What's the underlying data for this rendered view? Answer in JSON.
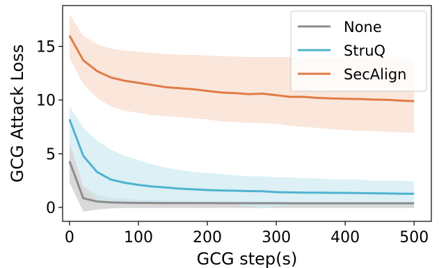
{
  "chart_data": {
    "type": "line",
    "xlabel": "GCG step(s)",
    "ylabel": "GCG Attack Loss",
    "xlim": [
      -10,
      525
    ],
    "ylim": [
      -1.3,
      18.8
    ],
    "xticks": [
      0,
      100,
      200,
      300,
      400,
      500
    ],
    "yticks": [
      0,
      5,
      10,
      15
    ],
    "grid": false,
    "legend_position": "top-right",
    "x": [
      0,
      20,
      40,
      60,
      80,
      100,
      120,
      140,
      160,
      180,
      200,
      220,
      240,
      260,
      280,
      300,
      320,
      340,
      360,
      380,
      400,
      420,
      440,
      460,
      480,
      500
    ],
    "series": [
      {
        "name": "None",
        "color": "#8c8c8c",
        "fill_color": "#c9c9c9",
        "values": [
          4.3,
          0.85,
          0.55,
          0.47,
          0.44,
          0.42,
          0.41,
          0.4,
          0.4,
          0.4,
          0.4,
          0.39,
          0.39,
          0.39,
          0.39,
          0.39,
          0.38,
          0.38,
          0.38,
          0.38,
          0.38,
          0.38,
          0.38,
          0.38,
          0.38,
          0.38
        ],
        "upper": [
          6.0,
          2.0,
          1.2,
          0.9,
          0.8,
          0.7,
          0.65,
          0.62,
          0.6,
          0.58,
          0.57,
          0.55,
          0.55,
          0.54,
          0.53,
          0.52,
          0.52,
          0.52,
          0.52,
          0.52,
          0.52,
          0.52,
          0.52,
          0.52,
          0.52,
          0.52
        ],
        "lower": [
          2.3,
          -0.4,
          -0.2,
          -0.1,
          -0.05,
          -0.05,
          -0.05,
          -0.05,
          -0.05,
          -0.05,
          -0.05,
          -0.05,
          -0.05,
          -0.05,
          -0.05,
          -0.05,
          -0.05,
          -0.05,
          -0.05,
          -0.05,
          -0.05,
          -0.05,
          -0.05,
          -0.05,
          -0.05,
          -0.05
        ]
      },
      {
        "name": "StruQ",
        "color": "#4fb3cf",
        "fill_color": "#cde9f2",
        "values": [
          8.2,
          4.8,
          3.3,
          2.6,
          2.3,
          2.1,
          1.95,
          1.85,
          1.75,
          1.68,
          1.62,
          1.58,
          1.55,
          1.52,
          1.5,
          1.42,
          1.4,
          1.38,
          1.37,
          1.36,
          1.35,
          1.33,
          1.32,
          1.3,
          1.28,
          1.27
        ],
        "upper": [
          9.4,
          7.4,
          6.2,
          5.4,
          4.8,
          4.4,
          4.0,
          3.7,
          3.5,
          3.3,
          3.2,
          3.1,
          3.0,
          2.9,
          2.9,
          2.8,
          2.8,
          2.7,
          2.7,
          2.6,
          2.6,
          2.6,
          2.5,
          2.5,
          2.5,
          2.4
        ],
        "lower": [
          5.9,
          2.1,
          0.7,
          0.5,
          0.4,
          0.4,
          0.4,
          0.3,
          0.3,
          0.3,
          0.3,
          0.3,
          0.3,
          0.1,
          -0.1,
          0.1,
          0.2,
          0.2,
          0.2,
          0.2,
          0.2,
          0.2,
          0.2,
          0.2,
          0.2,
          0.2
        ]
      },
      {
        "name": "SecAlign",
        "color": "#e07b45",
        "fill_color": "#f8dbcc",
        "values": [
          16.0,
          13.7,
          12.7,
          12.1,
          11.8,
          11.6,
          11.4,
          11.2,
          11.1,
          11.0,
          10.85,
          10.7,
          10.65,
          10.55,
          10.6,
          10.45,
          10.3,
          10.3,
          10.2,
          10.15,
          10.12,
          10.1,
          10.05,
          10.02,
          9.95,
          9.9
        ],
        "upper": [
          18.0,
          16.0,
          15.2,
          14.8,
          14.6,
          14.5,
          14.4,
          14.3,
          14.2,
          14.2,
          14.15,
          14.1,
          14.05,
          14.0,
          14.0,
          14.0,
          14.0,
          13.95,
          13.95,
          13.9,
          13.9,
          13.9,
          13.85,
          13.85,
          13.8,
          13.8
        ],
        "lower": [
          13.9,
          11.5,
          10.2,
          9.4,
          9.0,
          8.8,
          8.6,
          8.5,
          8.4,
          8.3,
          8.2,
          8.0,
          7.95,
          7.9,
          7.85,
          7.8,
          7.6,
          7.5,
          7.4,
          7.3,
          7.2,
          7.15,
          7.1,
          7.05,
          7.0,
          6.95
        ]
      }
    ]
  }
}
